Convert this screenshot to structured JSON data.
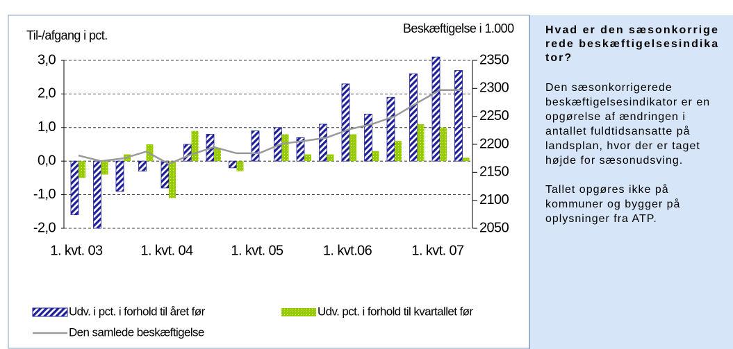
{
  "chart_data": {
    "type": "bar",
    "y_label": "Til-/afgang i pct.",
    "y2_label": "Beskæftigelse i 1.000",
    "categories": [
      "1. kvt. 03",
      null,
      null,
      null,
      "1. kvt. 04",
      null,
      null,
      null,
      "1. kvt. 05",
      null,
      null,
      null,
      "1. kvt.06",
      null,
      null,
      null,
      "1. kvt. 07",
      null
    ],
    "series": [
      {
        "name": "Udv. i pct. i forhold til året før",
        "type": "bar",
        "color": "#1f1f9a",
        "values": [
          -1.6,
          -2.0,
          -0.9,
          -0.3,
          -0.8,
          0.5,
          0.8,
          -0.2,
          0.9,
          1.0,
          0.7,
          1.1,
          2.3,
          1.4,
          1.9,
          2.6,
          3.1,
          2.7
        ]
      },
      {
        "name": "Udv. pct. i forhold til kvartallet før",
        "type": "bar",
        "color": "#99cc00",
        "values": [
          -0.5,
          -0.4,
          0.2,
          0.5,
          -1.1,
          0.9,
          0.4,
          -0.3,
          0.0,
          0.8,
          0.2,
          0.2,
          0.8,
          0.3,
          0.6,
          1.1,
          1.0,
          0.1
        ]
      },
      {
        "name": "Den samlede beskæftigelse",
        "type": "line",
        "color": "#999999",
        "axis": "y2",
        "values": [
          2180,
          2170,
          2175,
          2187,
          2165,
          2182,
          2195,
          2184,
          2184,
          2201,
          2206,
          2212,
          2227,
          2236,
          2250,
          2274,
          2297,
          2297
        ]
      }
    ],
    "ylim": [
      -2.0,
      3.0
    ],
    "yticks": [
      {
        "value": -2.0,
        "label": "-2,0"
      },
      {
        "value": -1.0,
        "label": "-1,0"
      },
      {
        "value": 0.0,
        "label": "0,0"
      },
      {
        "value": 1.0,
        "label": "1,0"
      },
      {
        "value": 2.0,
        "label": "2,0"
      },
      {
        "value": 3.0,
        "label": "3,0"
      }
    ],
    "y2lim": [
      2050,
      2350
    ],
    "y2ticks": [
      2050,
      2100,
      2150,
      2200,
      2250,
      2300,
      2350
    ],
    "grid": true
  },
  "sidebar": {
    "title": "Hvad er den sæsonkorrigerede beskæftigelsesindikator?",
    "paragraphs": [
      "Den sæsonkorrigerede beskæftigelsesindikator er en opgørelse af ændringen i antallet fuldtidsansatte på landsplan, hvor der er taget højde for sæsonudsving.",
      "Tallet opgøres ikke på kommuner og bygger på oplysninger fra ATP."
    ]
  }
}
